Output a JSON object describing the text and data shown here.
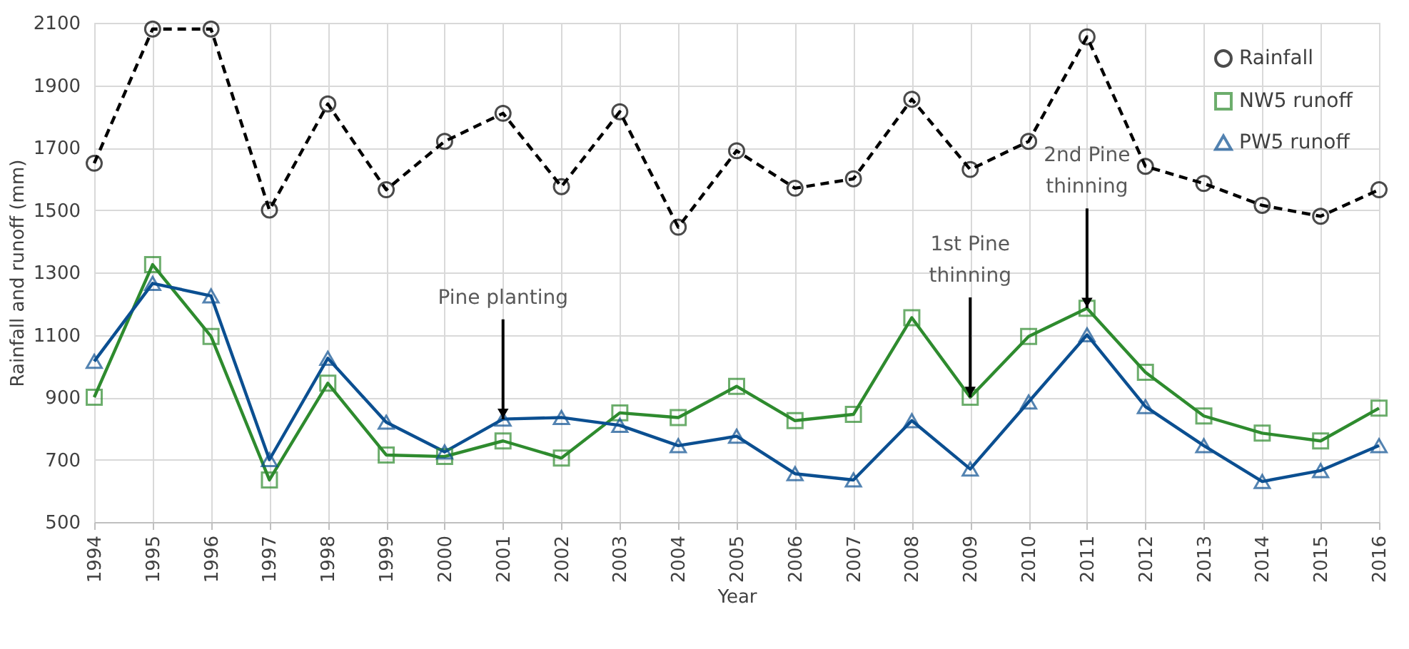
{
  "chart_data": {
    "type": "line",
    "xlabel": "Year",
    "ylabel": "Rainfall and runoff (mm)",
    "categories": [
      "1994",
      "1995",
      "1996",
      "1997",
      "1998",
      "1999",
      "2000",
      "2001",
      "2002",
      "2003",
      "2004",
      "2005",
      "2006",
      "2007",
      "2008",
      "2009",
      "2010",
      "2011",
      "2012",
      "2013",
      "2014",
      "2015",
      "2016"
    ],
    "series": [
      {
        "name": "Rainfall",
        "color": "#000000",
        "marker": "circle",
        "line_style": "dashed",
        "values": [
          1650,
          2080,
          2080,
          1500,
          1840,
          1565,
          1720,
          1810,
          1575,
          1815,
          1445,
          1690,
          1570,
          1600,
          1855,
          1630,
          1720,
          2055,
          1640,
          1585,
          1515,
          1480,
          1565
        ]
      },
      {
        "name": "NW5 runoff",
        "color": "#2e8b2e",
        "marker": "square",
        "line_style": "solid",
        "values": [
          900,
          1325,
          1095,
          635,
          945,
          715,
          710,
          760,
          705,
          850,
          835,
          935,
          825,
          845,
          1155,
          900,
          1095,
          1185,
          980,
          840,
          785,
          760,
          865
        ]
      },
      {
        "name": "PW5 runoff",
        "color": "#0b4f91",
        "marker": "triangle",
        "line_style": "solid",
        "values": [
          1015,
          1265,
          1225,
          700,
          1025,
          820,
          725,
          830,
          835,
          810,
          745,
          775,
          655,
          635,
          825,
          670,
          885,
          1100,
          870,
          745,
          630,
          665,
          745
        ]
      }
    ],
    "ylim": [
      500,
      2100
    ],
    "yticks": [
      500,
      700,
      900,
      1100,
      1300,
      1500,
      1700,
      1900,
      2100
    ],
    "grid": true,
    "legend": "top right",
    "annotations": [
      {
        "text": "Pine planting",
        "x": "2001",
        "y": 830
      },
      {
        "text": "1st Pine thinning",
        "x": "2009",
        "y": 900
      },
      {
        "text": "2nd Pine thinning",
        "x": "2011",
        "y": 1185
      }
    ]
  }
}
